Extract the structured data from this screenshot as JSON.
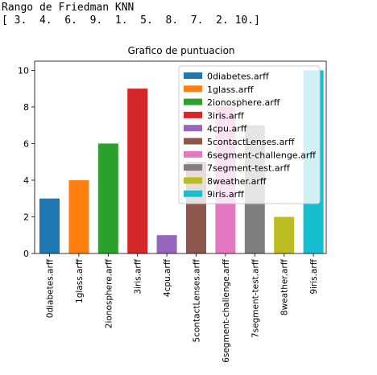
{
  "output": {
    "heading": "Rango de Friedman KNN",
    "ranks_line": "[ 3.  4.  6.  9.  1.  5.  8.  7.  2. 10.]"
  },
  "chart_data": {
    "type": "bar",
    "title": "Grafico de puntuacion",
    "xlabel": "",
    "ylabel": "",
    "categories": [
      "0diabetes.arff",
      "1glass.arff",
      "2ionosphere.arff",
      "3iris.arff",
      "4cpu.arff",
      "5contactLenses.arff",
      "6segment-challenge.arff",
      "7segment-test.arff",
      "8weather.arff",
      "9iris.arff"
    ],
    "values": [
      3,
      4,
      6,
      9,
      1,
      5,
      8,
      7,
      2,
      10
    ],
    "colors": [
      "#1f77b4",
      "#ff7f0e",
      "#2ca02c",
      "#d62728",
      "#9467bd",
      "#8c564b",
      "#e377c2",
      "#7f7f7f",
      "#bcbd22",
      "#17becf"
    ],
    "ylim": [
      0,
      10.5
    ],
    "yticks": [
      0,
      2,
      4,
      6,
      8,
      10
    ],
    "grid": false,
    "legend_placement": "top-right"
  }
}
